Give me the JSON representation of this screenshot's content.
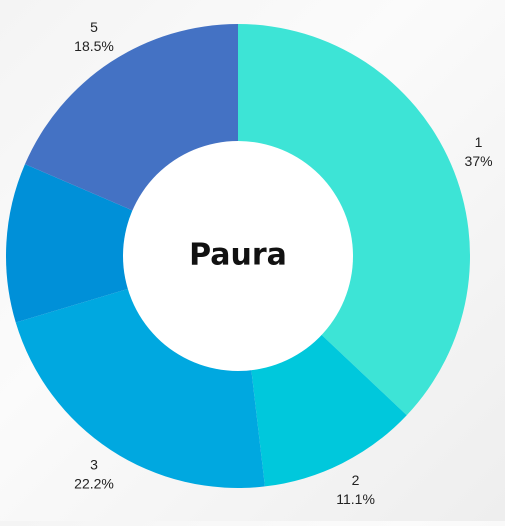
{
  "chart_data": {
    "type": "pie",
    "title": "Paura",
    "categories": [
      "1",
      "2",
      "3",
      null,
      "5"
    ],
    "values": [
      37,
      11.1,
      22.2,
      11.1,
      18.5
    ],
    "value_labels": [
      "37%",
      "11.1%",
      "22.2%",
      null,
      "18.5%"
    ],
    "colors": [
      "#3de4d6",
      "#00c8dc",
      "#00a8e0",
      "#0090d8",
      "#4472c4"
    ],
    "donut": true
  }
}
